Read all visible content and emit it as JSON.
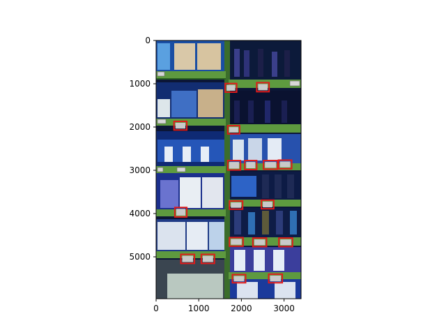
{
  "figure": {
    "type": "image_with_detections",
    "axes": {
      "xlim": [
        0,
        3400
      ],
      "ylim": [
        6000,
        0
      ],
      "xticks": [
        "0",
        "1000",
        "2000",
        "3000"
      ],
      "yticks": [
        "0",
        "1000",
        "2000",
        "3000",
        "4000",
        "5000"
      ]
    },
    "image_description": "retail shelf photo with bottles and bags",
    "detection_color": "#e11b1b"
  },
  "chart_data": {
    "type": "scatter",
    "title": "",
    "xlabel": "",
    "ylabel": "",
    "xlim": [
      0,
      3400
    ],
    "ylim": [
      6000,
      0
    ],
    "grid": false,
    "detections": [
      {
        "x1": 1620,
        "y1": 1000,
        "x2": 1890,
        "y2": 1200
      },
      {
        "x1": 2360,
        "y1": 980,
        "x2": 2650,
        "y2": 1190
      },
      {
        "x1": 420,
        "y1": 1880,
        "x2": 720,
        "y2": 2080
      },
      {
        "x1": 1680,
        "y1": 1980,
        "x2": 1960,
        "y2": 2170
      },
      {
        "x1": 1680,
        "y1": 2790,
        "x2": 1980,
        "y2": 3010
      },
      {
        "x1": 2080,
        "y1": 2790,
        "x2": 2360,
        "y2": 3000
      },
      {
        "x1": 2520,
        "y1": 2790,
        "x2": 2850,
        "y2": 2990
      },
      {
        "x1": 2870,
        "y1": 2780,
        "x2": 3180,
        "y2": 2980
      },
      {
        "x1": 1720,
        "y1": 3730,
        "x2": 2030,
        "y2": 3920
      },
      {
        "x1": 2470,
        "y1": 3710,
        "x2": 2760,
        "y2": 3910
      },
      {
        "x1": 440,
        "y1": 3880,
        "x2": 720,
        "y2": 4100
      },
      {
        "x1": 1720,
        "y1": 4580,
        "x2": 2040,
        "y2": 4780
      },
      {
        "x1": 2270,
        "y1": 4590,
        "x2": 2590,
        "y2": 4790
      },
      {
        "x1": 2880,
        "y1": 4590,
        "x2": 3200,
        "y2": 4790
      },
      {
        "x1": 580,
        "y1": 4970,
        "x2": 900,
        "y2": 5180
      },
      {
        "x1": 1060,
        "y1": 4970,
        "x2": 1370,
        "y2": 5180
      },
      {
        "x1": 1790,
        "y1": 5440,
        "x2": 2100,
        "y2": 5630
      },
      {
        "x1": 2640,
        "y1": 5430,
        "x2": 2960,
        "y2": 5630
      }
    ]
  }
}
